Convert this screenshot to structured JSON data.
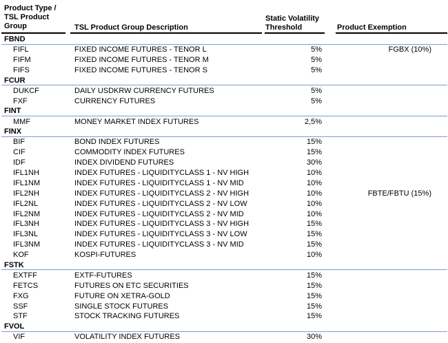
{
  "table": {
    "header": {
      "col1_lines": [
        "Product Type /",
        "TSL Product",
        "Group"
      ],
      "col2": "TSL Product Group Description",
      "col3_lines": [
        "Static Volatility",
        "Threshold"
      ],
      "col4": "Product Exemption"
    },
    "colors": {
      "text": "#000000",
      "header_rule": "#000000",
      "section_separator": "#7f9dc4"
    },
    "sections": [
      {
        "code": "FBND",
        "rows": [
          {
            "code": "FIFL",
            "description": "FIXED INCOME FUTURES - TENOR L",
            "threshold": "5%",
            "exemption": "FGBX (10%)"
          },
          {
            "code": "FIFM",
            "description": "FIXED INCOME FUTURES - TENOR M",
            "threshold": "5%",
            "exemption": ""
          },
          {
            "code": "FIFS",
            "description": "FIXED INCOME FUTURES - TENOR S",
            "threshold": "5%",
            "exemption": ""
          }
        ]
      },
      {
        "code": "FCUR",
        "rows": [
          {
            "code": "DUKCF",
            "description": "DAILY USDKRW CURRENCY FUTURES",
            "threshold": "5%",
            "exemption": ""
          },
          {
            "code": "FXF",
            "description": "CURRENCY FUTURES",
            "threshold": "5%",
            "exemption": ""
          }
        ]
      },
      {
        "code": "FINT",
        "rows": [
          {
            "code": "MMF",
            "description": "MONEY MARKET INDEX FUTURES",
            "threshold": "2,5%",
            "exemption": ""
          }
        ]
      },
      {
        "code": "FINX",
        "rows": [
          {
            "code": "BIF",
            "description": "BOND INDEX FUTURES",
            "threshold": "15%",
            "exemption": ""
          },
          {
            "code": "CIF",
            "description": "COMMODITY INDEX FUTURES",
            "threshold": "15%",
            "exemption": ""
          },
          {
            "code": "IDF",
            "description": "INDEX DIVIDEND FUTURES",
            "threshold": "30%",
            "exemption": ""
          },
          {
            "code": "IFL1NH",
            "description": "INDEX FUTURES - LIQUIDITYCLASS 1 - NV HIGH",
            "threshold": "10%",
            "exemption": ""
          },
          {
            "code": "IFL1NM",
            "description": "INDEX FUTURES - LIQUIDITYCLASS 1 - NV MID",
            "threshold": "10%",
            "exemption": ""
          },
          {
            "code": "IFL2NH",
            "description": "INDEX FUTURES - LIQUIDITYCLASS 2 - NV HIGH",
            "threshold": "10%",
            "exemption": "FBTE/FBTU (15%)"
          },
          {
            "code": "IFL2NL",
            "description": "INDEX FUTURES - LIQUIDITYCLASS 2 - NV LOW",
            "threshold": "10%",
            "exemption": ""
          },
          {
            "code": "IFL2NM",
            "description": "INDEX FUTURES - LIQUIDITYCLASS 2 - NV MID",
            "threshold": "10%",
            "exemption": ""
          },
          {
            "code": "IFL3NH",
            "description": "INDEX FUTURES - LIQUIDITYCLASS 3 - NV HIGH",
            "threshold": "15%",
            "exemption": ""
          },
          {
            "code": "IFL3NL",
            "description": "INDEX FUTURES - LIQUIDITYCLASS 3 - NV LOW",
            "threshold": "15%",
            "exemption": ""
          },
          {
            "code": "IFL3NM",
            "description": "INDEX FUTURES - LIQUIDITYCLASS 3 - NV MID",
            "threshold": "15%",
            "exemption": ""
          },
          {
            "code": "KOF",
            "description": "KOSPI-FUTURES",
            "threshold": "10%",
            "exemption": ""
          }
        ]
      },
      {
        "code": "FSTK",
        "rows": [
          {
            "code": "EXTFF",
            "description": "EXTF-FUTURES",
            "threshold": "15%",
            "exemption": ""
          },
          {
            "code": "FETCS",
            "description": "FUTURES ON ETC SECURITIES",
            "threshold": "15%",
            "exemption": ""
          },
          {
            "code": "FXG",
            "description": "FUTURE ON XETRA-GOLD",
            "threshold": "15%",
            "exemption": ""
          },
          {
            "code": "SSF",
            "description": "SINGLE STOCK FUTURES",
            "threshold": "15%",
            "exemption": ""
          },
          {
            "code": "STF",
            "description": "STOCK TRACKING FUTURES",
            "threshold": "15%",
            "exemption": ""
          }
        ]
      },
      {
        "code": "FVOL",
        "rows": [
          {
            "code": "VIF",
            "description": "VOLATILITY INDEX FUTURES",
            "threshold": "30%",
            "exemption": ""
          }
        ]
      }
    ]
  }
}
